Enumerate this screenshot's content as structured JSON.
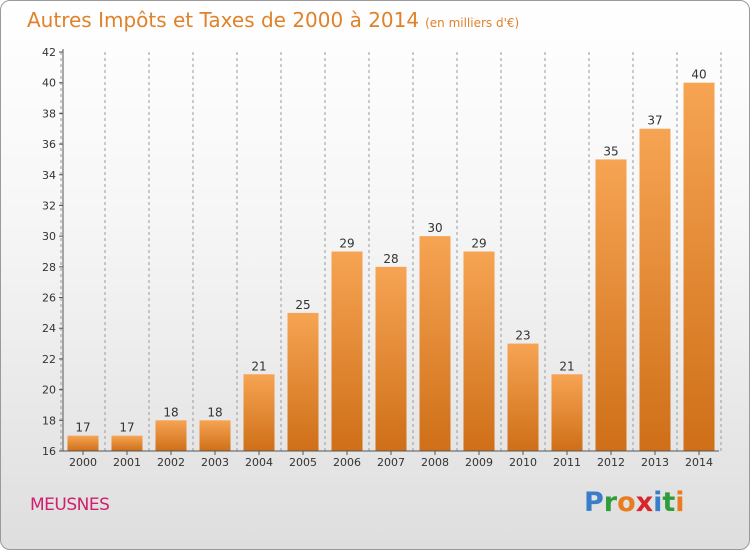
{
  "title": "Autres Impôts et Taxes de 2000 à 2014",
  "unit": "(en milliers d'€)",
  "commune": "MEUSNES",
  "logo": {
    "letters": [
      {
        "char": "P",
        "color": "#3a7dc9"
      },
      {
        "char": "r",
        "color": "#2f9e3a"
      },
      {
        "char": "o",
        "color": "#e87c1e"
      },
      {
        "char": "x",
        "color": "#d9262b"
      },
      {
        "char": "i",
        "color": "#3a7dc9"
      },
      {
        "char": "t",
        "color": "#2f9e3a"
      },
      {
        "char": "i",
        "color": "#e87c1e"
      }
    ]
  },
  "colors": {
    "bar_top": "#f6a453",
    "bar_bottom": "#cf6f18",
    "axis": "#555555",
    "grid": "#9a9a9a",
    "title": "#e0822a",
    "commune": "#cf1f6e"
  },
  "chart_data": {
    "type": "bar",
    "title": "Autres Impôts et Taxes de 2000 à 2014",
    "subtitle": "(en milliers d'€)",
    "categories": [
      "2000",
      "2001",
      "2002",
      "2003",
      "2004",
      "2005",
      "2006",
      "2007",
      "2008",
      "2009",
      "2010",
      "2011",
      "2012",
      "2013",
      "2014"
    ],
    "values": [
      17,
      17,
      18,
      18,
      21,
      25,
      29,
      28,
      30,
      29,
      23,
      21,
      35,
      37,
      40
    ],
    "ylim": [
      16,
      42
    ],
    "yticks": [
      16,
      18,
      20,
      22,
      24,
      26,
      28,
      30,
      32,
      34,
      36,
      38,
      40,
      42
    ],
    "data_labels": true,
    "grid": "dashed vertical lines between bars"
  }
}
